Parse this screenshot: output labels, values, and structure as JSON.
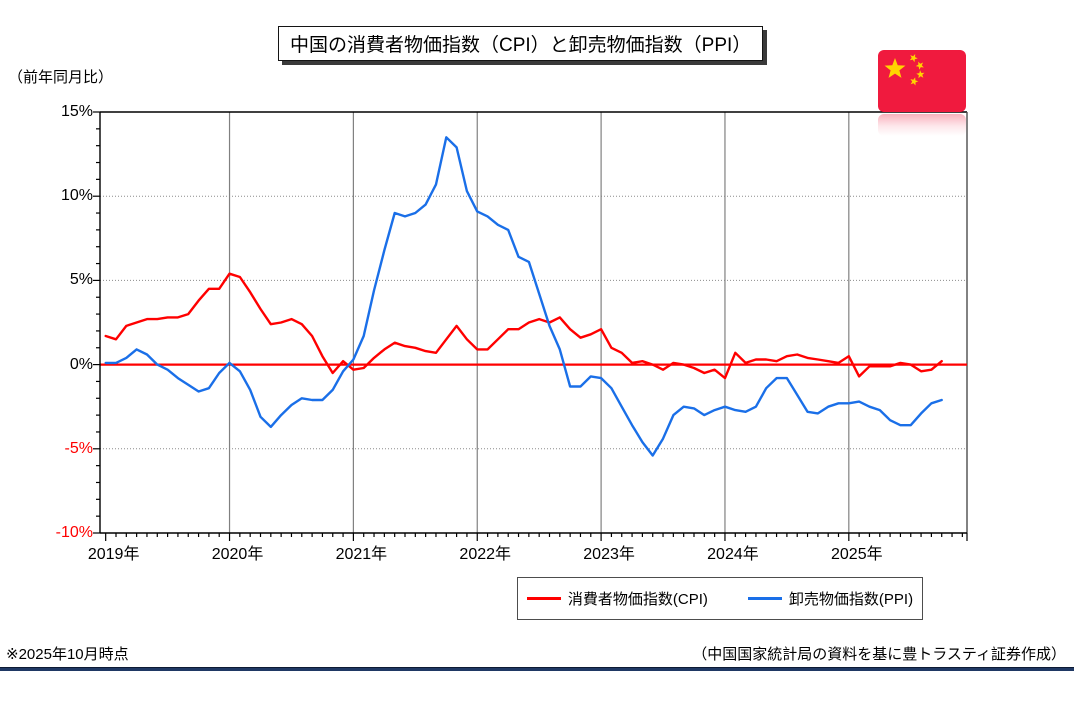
{
  "header": {
    "title": "中国の消費者物価指数（CPI）と卸売物価指数（PPI）"
  },
  "axis_note": "（前年同月比）",
  "footer": {
    "note": "※2025年10月時点",
    "source": "（中国国家統計局の資料を基に豊トラスティ証券作成）"
  },
  "flag": {
    "country": "china",
    "red": "#f01a3e",
    "yellow": "#ffd400"
  },
  "legend": {
    "items": [
      {
        "label": "消費者物価指数(CPI)",
        "color": "#ff0000"
      },
      {
        "label": "卸売物価指数(PPI)",
        "color": "#1a6fe8"
      }
    ]
  },
  "chart_data": {
    "type": "line",
    "title": "中国の消費者物価指数（CPI）と卸売物価指数（PPI）",
    "ylabel": "（前年同月比）",
    "ylim": [
      -10,
      15
    ],
    "x_range": {
      "start": "2019-01",
      "end": "2025-10",
      "freq": "monthly"
    },
    "x_tick_labels": [
      "2019年",
      "2020年",
      "2021年",
      "2022年",
      "2023年",
      "2024年",
      "2025年"
    ],
    "y_ticks": [
      {
        "label": "15%",
        "value": 15,
        "color": "#000000"
      },
      {
        "label": "10%",
        "value": 10,
        "color": "#000000"
      },
      {
        "label": "5%",
        "value": 5,
        "color": "#000000"
      },
      {
        "label": "0%",
        "value": 0,
        "color": "#000000"
      },
      {
        "label": "-5%",
        "value": -5,
        "color": "#ff0000"
      },
      {
        "label": "-10%",
        "value": -10,
        "color": "#ff0000"
      }
    ],
    "grid": true,
    "zero_line_color": "#ff0000",
    "legend_position": "bottom",
    "series": [
      {
        "name": "消費者物価指数(CPI)",
        "color": "#ff0000",
        "values": [
          1.7,
          1.5,
          2.3,
          2.5,
          2.7,
          2.7,
          2.8,
          2.8,
          3.0,
          3.8,
          4.5,
          4.5,
          5.4,
          5.2,
          4.3,
          3.3,
          2.4,
          2.5,
          2.7,
          2.4,
          1.7,
          0.5,
          -0.5,
          0.2,
          -0.3,
          -0.2,
          0.4,
          0.9,
          1.3,
          1.1,
          1.0,
          0.8,
          0.7,
          1.5,
          2.3,
          1.5,
          0.9,
          0.9,
          1.5,
          2.1,
          2.1,
          2.5,
          2.7,
          2.5,
          2.8,
          2.1,
          1.6,
          1.8,
          2.1,
          1.0,
          0.7,
          0.1,
          0.2,
          0.0,
          -0.3,
          0.1,
          0.0,
          -0.2,
          -0.5,
          -0.3,
          -0.8,
          0.7,
          0.1,
          0.3,
          0.3,
          0.2,
          0.5,
          0.6,
          0.4,
          0.3,
          0.2,
          0.1,
          0.5,
          -0.7,
          -0.1,
          -0.1,
          -0.1,
          0.1,
          0.0,
          -0.4,
          -0.3,
          0.2
        ]
      },
      {
        "name": "卸売物価指数(PPI)",
        "color": "#1a6fe8",
        "values": [
          0.1,
          0.1,
          0.4,
          0.9,
          0.6,
          0.0,
          -0.3,
          -0.8,
          -1.2,
          -1.6,
          -1.4,
          -0.5,
          0.1,
          -0.4,
          -1.5,
          -3.1,
          -3.7,
          -3.0,
          -2.4,
          -2.0,
          -2.1,
          -2.1,
          -1.5,
          -0.4,
          0.3,
          1.7,
          4.4,
          6.8,
          9.0,
          8.8,
          9.0,
          9.5,
          10.7,
          13.5,
          12.9,
          10.3,
          9.1,
          8.8,
          8.3,
          8.0,
          6.4,
          6.1,
          4.2,
          2.3,
          0.9,
          -1.3,
          -1.3,
          -0.7,
          -0.8,
          -1.4,
          -2.5,
          -3.6,
          -4.6,
          -5.4,
          -4.4,
          -3.0,
          -2.5,
          -2.6,
          -3.0,
          -2.7,
          -2.5,
          -2.7,
          -2.8,
          -2.5,
          -1.4,
          -0.8,
          -0.8,
          -1.8,
          -2.8,
          -2.9,
          -2.5,
          -2.3,
          -2.3,
          -2.2,
          -2.5,
          -2.7,
          -3.3,
          -3.6,
          -3.6,
          -2.9,
          -2.3,
          -2.1
        ]
      }
    ]
  }
}
